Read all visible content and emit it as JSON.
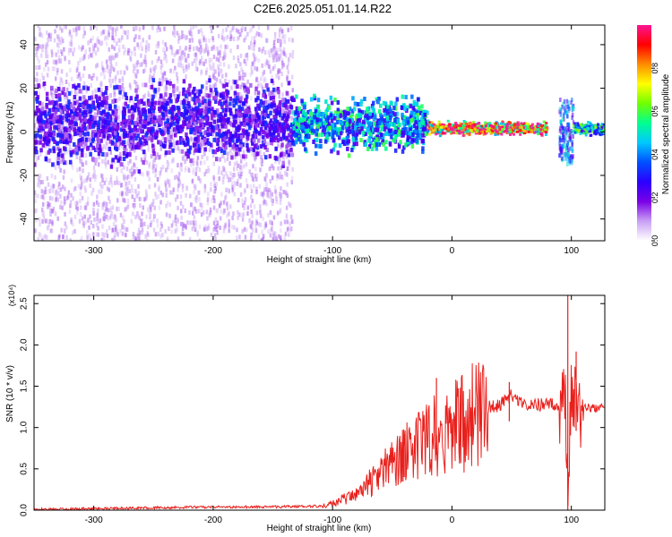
{
  "title": "C2E6.2025.051.01.14.R22",
  "chart_data": [
    {
      "type": "heatmap",
      "xlabel": "Height of straight line (km)",
      "ylabel": "Frequency (Hz)",
      "xlim": [
        -350,
        128
      ],
      "ylim": [
        -50,
        49
      ],
      "xticks": [
        -300,
        -200,
        -100,
        0,
        100
      ],
      "xtick_labels": [
        "-300",
        "-200",
        "-100",
        "0",
        "100"
      ],
      "yticks": [
        -40,
        -20,
        0,
        20,
        40
      ],
      "ytick_labels": [
        "-40",
        "-20",
        "0",
        "20",
        "40"
      ],
      "grid": false,
      "colorbar": {
        "label": "Normalized spectral amplitude",
        "range": [
          0,
          1
        ],
        "ticks": [
          0,
          0.2,
          0.4,
          0.6,
          0.8
        ],
        "tick_labels": [
          "0.0",
          "0.2",
          "0.4",
          "0.6",
          "0.8"
        ],
        "colormap": [
          "#ffffff",
          "#c9a0f5",
          "#7a00e6",
          "#2a00ff",
          "#0050ff",
          "#00c8ff",
          "#00ff90",
          "#70ff00",
          "#ffff00",
          "#ff8c00",
          "#ff0000",
          "#ff1493"
        ]
      },
      "features": [
        {
          "region": "diffuse noise",
          "x_range": [
            -350,
            -133
          ],
          "freq_range": [
            -50,
            49
          ],
          "amplitude": 0.1
        },
        {
          "region": "noisy band",
          "x_range": [
            -350,
            -133
          ],
          "center_freq": 4,
          "half_width": 12,
          "amplitude": 0.25
        },
        {
          "region": "broadening band",
          "x_range": [
            -133,
            -20
          ],
          "center_freq": 3,
          "half_width": 8,
          "amplitude": 0.45
        },
        {
          "region": "narrow line",
          "x_range": [
            -20,
            80
          ],
          "center_freq": 1.5,
          "half_width": 2,
          "amplitude": 0.9
        },
        {
          "region": "disturbance",
          "x_range": [
            90,
            102
          ],
          "freq_range": [
            -15,
            15
          ],
          "amplitude": 0.4
        },
        {
          "region": "narrow line",
          "x_range": [
            102,
            128
          ],
          "center_freq": 1.5,
          "half_width": 2,
          "amplitude": 0.5
        }
      ]
    },
    {
      "type": "line",
      "xlabel": "Height of straight line (km)",
      "ylabel": "SNR (10 * v/v)",
      "y_multiplier": "(x10⁴)",
      "xlim": [
        -350,
        128
      ],
      "ylim": [
        0,
        2.6
      ],
      "xticks": [
        -300,
        -200,
        -100,
        0,
        100
      ],
      "xtick_labels": [
        "-300",
        "-200",
        "-100",
        "0",
        "100"
      ],
      "yticks": [
        0,
        0.5,
        1,
        1.5,
        2,
        2.5
      ],
      "ytick_labels": [
        "0.0",
        "0.5",
        "1.0",
        "1.5",
        "2.0",
        "2.5"
      ],
      "grid": false,
      "color": "#e8201c",
      "x": [
        -350,
        -300,
        -250,
        -200,
        -150,
        -110,
        -100,
        -80,
        -60,
        -40,
        -20,
        -10,
        0,
        20,
        40,
        50,
        60,
        80,
        90,
        95,
        97,
        100,
        105,
        110,
        128
      ],
      "y": [
        0.01,
        0.02,
        0.03,
        0.04,
        0.04,
        0.05,
        0.08,
        0.2,
        0.45,
        0.7,
        0.9,
        1.0,
        1.05,
        1.22,
        1.28,
        1.4,
        1.3,
        1.28,
        1.28,
        1.5,
        0.05,
        1.5,
        1.2,
        1.25,
        1.24
      ],
      "spikes": [
        {
          "x": -40,
          "y": 0.85
        },
        {
          "x": -13,
          "y": 1.6
        },
        {
          "x": 48,
          "y": 1.55
        },
        {
          "x": 97,
          "y": 2.6
        },
        {
          "x": 104,
          "y": 1.92
        }
      ]
    }
  ]
}
